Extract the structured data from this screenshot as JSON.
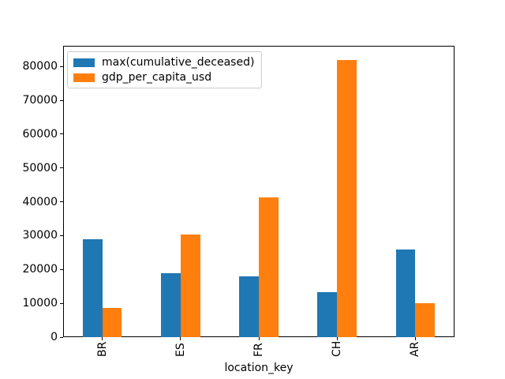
{
  "chart_data": {
    "type": "bar",
    "title": "",
    "xlabel": "location_key",
    "ylabel": "",
    "categories": [
      "BR",
      "ES",
      "FR",
      "CH",
      "AR"
    ],
    "series": [
      {
        "name": "max(cumulative_deceased)",
        "color": "#1f77b4",
        "values": [
          28900,
          19000,
          17900,
          13200,
          25900
        ]
      },
      {
        "name": "gdp_per_capita_usd",
        "color": "#ff7f0e",
        "values": [
          8700,
          30300,
          41300,
          81900,
          10000
        ]
      }
    ],
    "ylim": [
      0,
      86100
    ],
    "yticks": [
      0,
      10000,
      20000,
      30000,
      40000,
      50000,
      60000,
      70000,
      80000
    ],
    "grid": false,
    "legend_position": "upper-left",
    "xtick_label_rotation": 90,
    "axis_color": "#000000",
    "background_color": "#ffffff"
  }
}
